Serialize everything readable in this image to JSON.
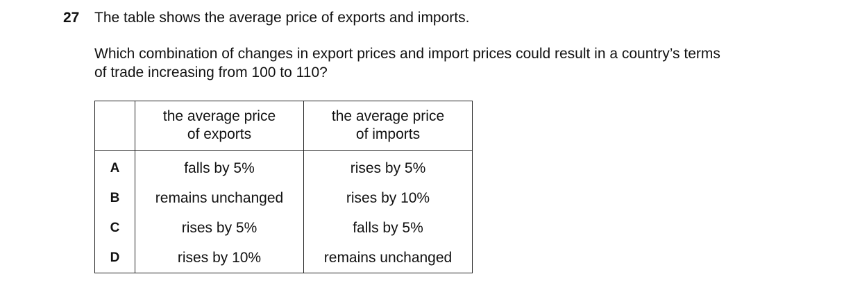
{
  "question": {
    "number": "27",
    "stem": "The table shows the average price of exports and imports.",
    "prompt": [
      "Which combination of changes in export prices and import prices could result in a country’s terms",
      "of trade increasing from 100 to 110?"
    ]
  },
  "table": {
    "header": [
      [
        "the average price",
        "of exports"
      ],
      [
        "the average price",
        "of imports"
      ]
    ],
    "rows": [
      [
        "A",
        "falls by 5%",
        "rises by 5%"
      ],
      [
        "B",
        "remains unchanged",
        "rises by 10%"
      ],
      [
        "C",
        "rises by 5%",
        "falls by 5%"
      ],
      [
        "D",
        "rises by 10%",
        "remains unchanged"
      ]
    ]
  }
}
